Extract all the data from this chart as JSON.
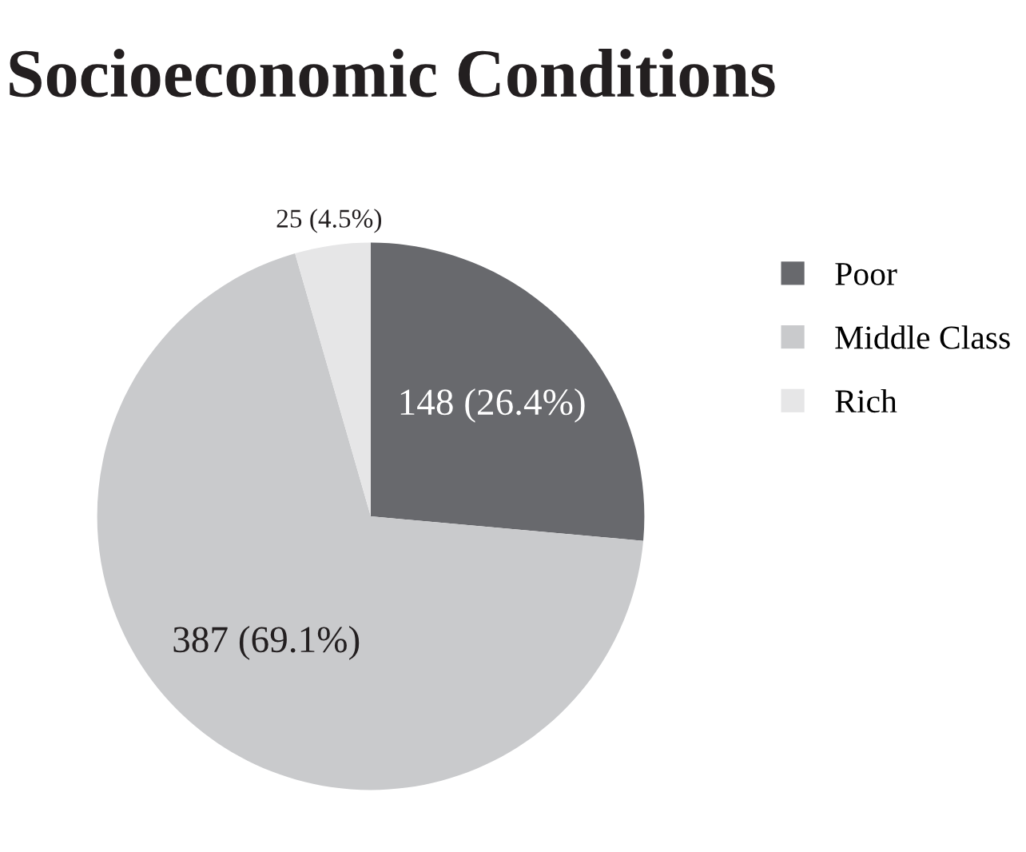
{
  "chart_data": {
    "type": "pie",
    "title": "Socioeconomic Conditions",
    "categories": [
      "Poor",
      "Middle Class",
      "Rich"
    ],
    "values": [
      148,
      387,
      25
    ],
    "value_labels": [
      "148 (26.4%)",
      "387 (69.1%)",
      "25 (4.5%)"
    ],
    "colors": [
      "#68696d",
      "#c9cacc",
      "#e6e6e7"
    ],
    "legend": "right"
  }
}
